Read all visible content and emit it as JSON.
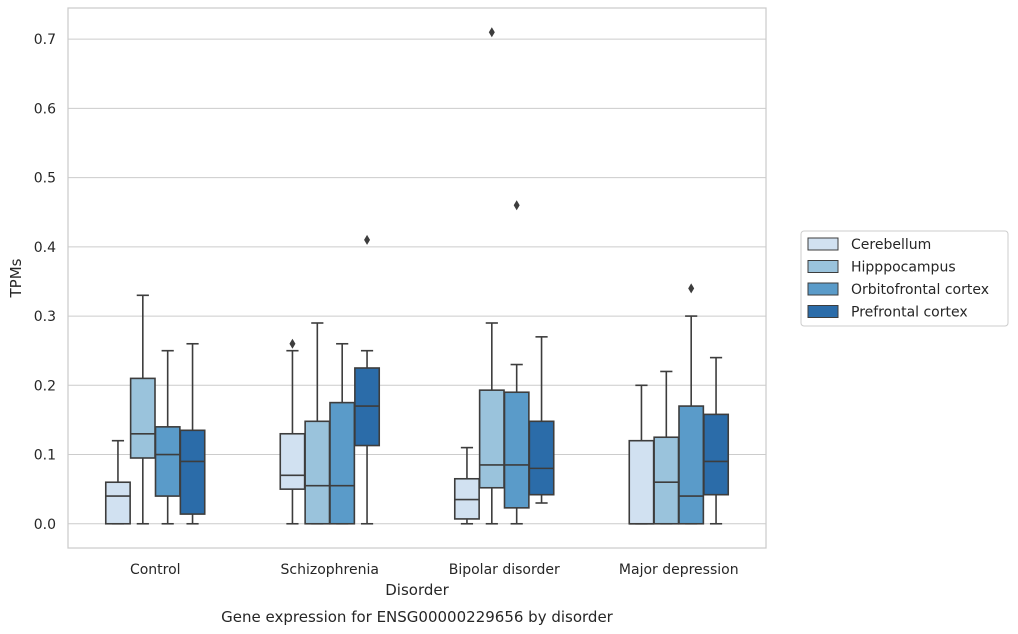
{
  "chart_data": {
    "type": "boxplot",
    "xlabel": "Disorder",
    "ylabel": "TPMs",
    "caption": "Gene expression for ENSG00000229656 by disorder",
    "ylim": [
      -0.035,
      0.745
    ],
    "yticks": [
      0.0,
      0.1,
      0.2,
      0.3,
      0.4,
      0.5,
      0.6,
      0.7
    ],
    "ytick_labels": [
      "0.0",
      "0.1",
      "0.2",
      "0.3",
      "0.4",
      "0.5",
      "0.6",
      "0.7"
    ],
    "grid": "horizontal",
    "legend": "right",
    "categories": [
      "Control",
      "Schizophrenia",
      "Bipolar disorder",
      "Major depression"
    ],
    "series": [
      {
        "name": "Cerebellum",
        "color": "#d1e1f1",
        "boxes": [
          {
            "min": 0.0,
            "q1": 0.0,
            "median": 0.04,
            "q3": 0.06,
            "max": 0.12,
            "outliers": []
          },
          {
            "min": 0.0,
            "q1": 0.05,
            "median": 0.07,
            "q3": 0.13,
            "max": 0.25,
            "outliers": [
              0.26
            ]
          },
          {
            "min": 0.0,
            "q1": 0.007,
            "median": 0.035,
            "q3": 0.065,
            "max": 0.11,
            "outliers": []
          },
          {
            "min": 0.0,
            "q1": 0.0,
            "median": 0.0,
            "q3": 0.12,
            "max": 0.2,
            "outliers": []
          }
        ]
      },
      {
        "name": "Hipppocampus",
        "color": "#9ac3dc",
        "boxes": [
          {
            "min": 0.0,
            "q1": 0.095,
            "median": 0.13,
            "q3": 0.21,
            "max": 0.33,
            "outliers": []
          },
          {
            "min": 0.0,
            "q1": 0.0,
            "median": 0.055,
            "q3": 0.148,
            "max": 0.29,
            "outliers": []
          },
          {
            "min": 0.0,
            "q1": 0.052,
            "median": 0.085,
            "q3": 0.193,
            "max": 0.29,
            "outliers": [
              0.71
            ]
          },
          {
            "min": 0.0,
            "q1": 0.0,
            "median": 0.06,
            "q3": 0.125,
            "max": 0.22,
            "outliers": []
          }
        ]
      },
      {
        "name": "Orbitofrontal cortex",
        "color": "#5a9bc9",
        "boxes": [
          {
            "min": 0.0,
            "q1": 0.04,
            "median": 0.1,
            "q3": 0.14,
            "max": 0.25,
            "outliers": []
          },
          {
            "min": 0.0,
            "q1": 0.0,
            "median": 0.055,
            "q3": 0.175,
            "max": 0.26,
            "outliers": []
          },
          {
            "min": 0.0,
            "q1": 0.023,
            "median": 0.085,
            "q3": 0.19,
            "max": 0.23,
            "outliers": [
              0.46
            ]
          },
          {
            "min": 0.0,
            "q1": 0.0,
            "median": 0.04,
            "q3": 0.17,
            "max": 0.3,
            "outliers": [
              0.34
            ]
          }
        ]
      },
      {
        "name": "Prefrontal cortex",
        "color": "#2b6ca9",
        "boxes": [
          {
            "min": 0.0,
            "q1": 0.014,
            "median": 0.09,
            "q3": 0.135,
            "max": 0.26,
            "outliers": []
          },
          {
            "min": 0.0,
            "q1": 0.113,
            "median": 0.17,
            "q3": 0.225,
            "max": 0.25,
            "outliers": [
              0.41
            ]
          },
          {
            "min": 0.03,
            "q1": 0.042,
            "median": 0.08,
            "q3": 0.148,
            "max": 0.27,
            "outliers": []
          },
          {
            "min": 0.0,
            "q1": 0.042,
            "median": 0.09,
            "q3": 0.158,
            "max": 0.24,
            "outliers": []
          }
        ]
      }
    ]
  }
}
